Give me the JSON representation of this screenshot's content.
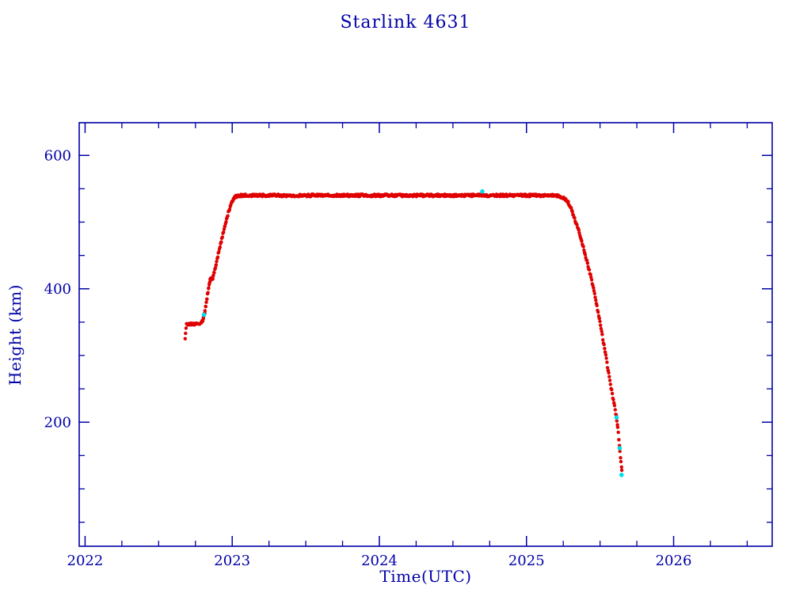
{
  "page": {
    "background": "#ffffff"
  },
  "chart_data": {
    "type": "scatter",
    "title": "Starlink 4631",
    "xlabel": "Time(UTC)",
    "ylabel": "Height (km)",
    "xlim": [
      2021.96,
      2026.67
    ],
    "ylim": [
      14,
      649
    ],
    "x_major_ticks": [
      2022,
      2023,
      2024,
      2025,
      2026
    ],
    "x_minor_step": 0.25,
    "y_major_ticks": [
      200,
      400,
      600
    ],
    "y_minor_step": 50,
    "axis_color": "#0000A8",
    "grid": false,
    "legend": "none",
    "series": [
      {
        "name": "height-track",
        "color": "#e00000",
        "marker": "dot",
        "keypoints": [
          [
            2022.68,
            325
          ],
          [
            2022.683,
            334
          ],
          [
            2022.686,
            342
          ],
          [
            2022.69,
            346
          ],
          [
            2022.7,
            347
          ],
          [
            2022.75,
            347
          ],
          [
            2022.79,
            348
          ],
          [
            2022.795,
            351
          ],
          [
            2022.8,
            353
          ],
          [
            2022.805,
            358
          ],
          [
            2022.81,
            361
          ],
          [
            2022.815,
            366
          ],
          [
            2022.82,
            374
          ],
          [
            2022.828,
            386
          ],
          [
            2022.835,
            396
          ],
          [
            2022.84,
            403
          ],
          [
            2022.845,
            409
          ],
          [
            2022.85,
            413
          ],
          [
            2022.855,
            415
          ],
          [
            2022.868,
            416
          ],
          [
            2022.872,
            420
          ],
          [
            2022.878,
            425
          ],
          [
            2022.89,
            437
          ],
          [
            2022.905,
            452
          ],
          [
            2022.925,
            471
          ],
          [
            2022.95,
            494
          ],
          [
            2022.975,
            515
          ],
          [
            2023.0,
            531
          ],
          [
            2023.02,
            538
          ],
          [
            2023.04,
            540
          ],
          [
            2023.5,
            540
          ],
          [
            2024.0,
            540
          ],
          [
            2024.5,
            540
          ],
          [
            2025.0,
            540
          ],
          [
            2025.2,
            540
          ],
          [
            2025.23,
            538
          ],
          [
            2025.26,
            535
          ],
          [
            2025.285,
            529
          ],
          [
            2025.3,
            522
          ],
          [
            2025.315,
            513
          ],
          [
            2025.335,
            500
          ],
          [
            2025.355,
            487
          ],
          [
            2025.375,
            472
          ],
          [
            2025.395,
            455
          ],
          [
            2025.415,
            438
          ],
          [
            2025.435,
            420
          ],
          [
            2025.455,
            400
          ],
          [
            2025.475,
            378
          ],
          [
            2025.495,
            355
          ],
          [
            2025.515,
            330
          ],
          [
            2025.535,
            305
          ],
          [
            2025.555,
            278
          ],
          [
            2025.575,
            252
          ],
          [
            2025.595,
            228
          ],
          [
            2025.61,
            210
          ],
          [
            2025.62,
            193
          ],
          [
            2025.628,
            175
          ],
          [
            2025.635,
            158
          ],
          [
            2025.642,
            140
          ],
          [
            2025.648,
            128
          ]
        ]
      },
      {
        "name": "flagged-points",
        "color": "#00dde8",
        "marker": "dot",
        "points": [
          [
            2022.808,
            361
          ],
          [
            2024.7,
            546
          ],
          [
            2025.612,
            207
          ],
          [
            2025.633,
            161
          ],
          [
            2025.646,
            121
          ]
        ]
      }
    ]
  }
}
